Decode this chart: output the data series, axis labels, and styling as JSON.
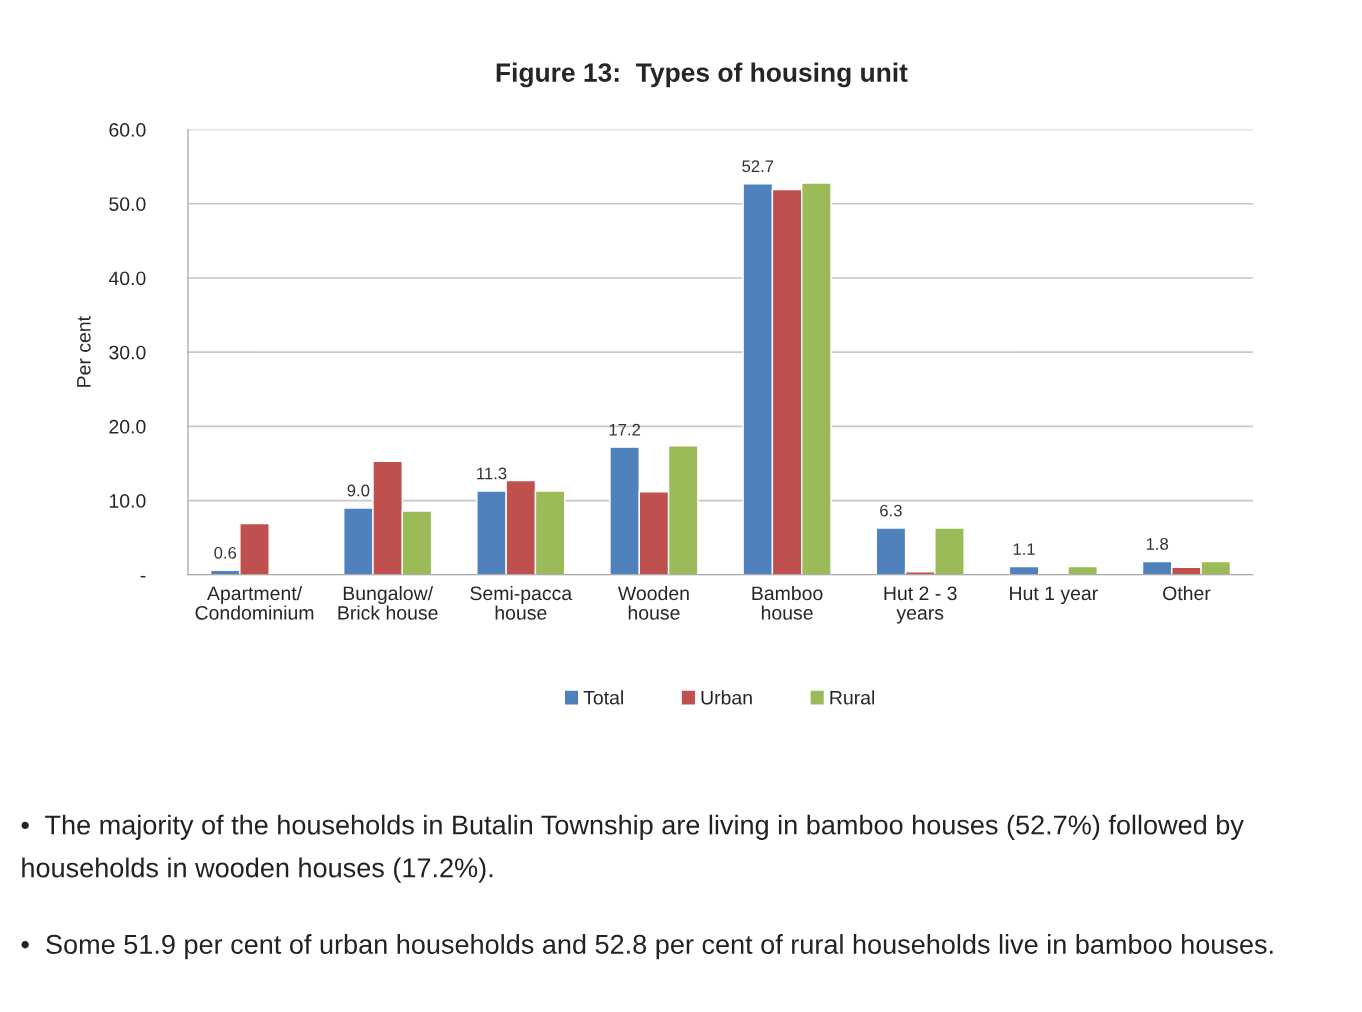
{
  "chart_data": {
    "type": "bar",
    "title": "Figure 13:  Types of housing unit",
    "ylabel": "Per cent",
    "categories": [
      "Apartment/\nCondominium",
      "Bungalow/\nBrick house",
      "Semi-pacca\nhouse",
      "Wooden\nhouse",
      "Bamboo\nhouse",
      "Hut 2 - 3\nyears",
      "Hut 1 year",
      "Other"
    ],
    "series": [
      {
        "name": "Total",
        "color": "#4f81bd",
        "values": [
          0.6,
          9.0,
          11.3,
          17.2,
          52.7,
          6.3,
          1.1,
          1.8
        ],
        "value_labels": [
          "0.6",
          "9.0",
          "11.3",
          "17.2",
          "52.7",
          "6.3",
          "1.1",
          "1.8"
        ]
      },
      {
        "name": "Urban",
        "color": "#c0504d",
        "values": [
          6.9,
          15.3,
          12.7,
          11.2,
          51.9,
          0.4,
          null,
          1.0
        ]
      },
      {
        "name": "Rural",
        "color": "#9bbb59",
        "values": [
          null,
          8.6,
          11.3,
          17.4,
          52.8,
          6.3,
          1.1,
          1.8
        ]
      }
    ],
    "ylim": [
      0,
      60
    ],
    "yticks": [
      {
        "value": 0,
        "label": "-"
      },
      {
        "value": 10,
        "label": "10.0"
      },
      {
        "value": 20,
        "label": "20.0"
      },
      {
        "value": 30,
        "label": "30.0"
      },
      {
        "value": 40,
        "label": "40.0"
      },
      {
        "value": 50,
        "label": "50.0"
      },
      {
        "value": 60,
        "label": "60.0"
      }
    ],
    "grid": "y",
    "legend": "bottom",
    "annotations": [
      "•  The majority of the households in Butalin Township are living in bamboo houses (52.7%) followed by households in wooden houses (17.2%).",
      "•  Some 51.9 per cent of urban households and 52.8 per cent of rural households live in bamboo houses."
    ]
  }
}
